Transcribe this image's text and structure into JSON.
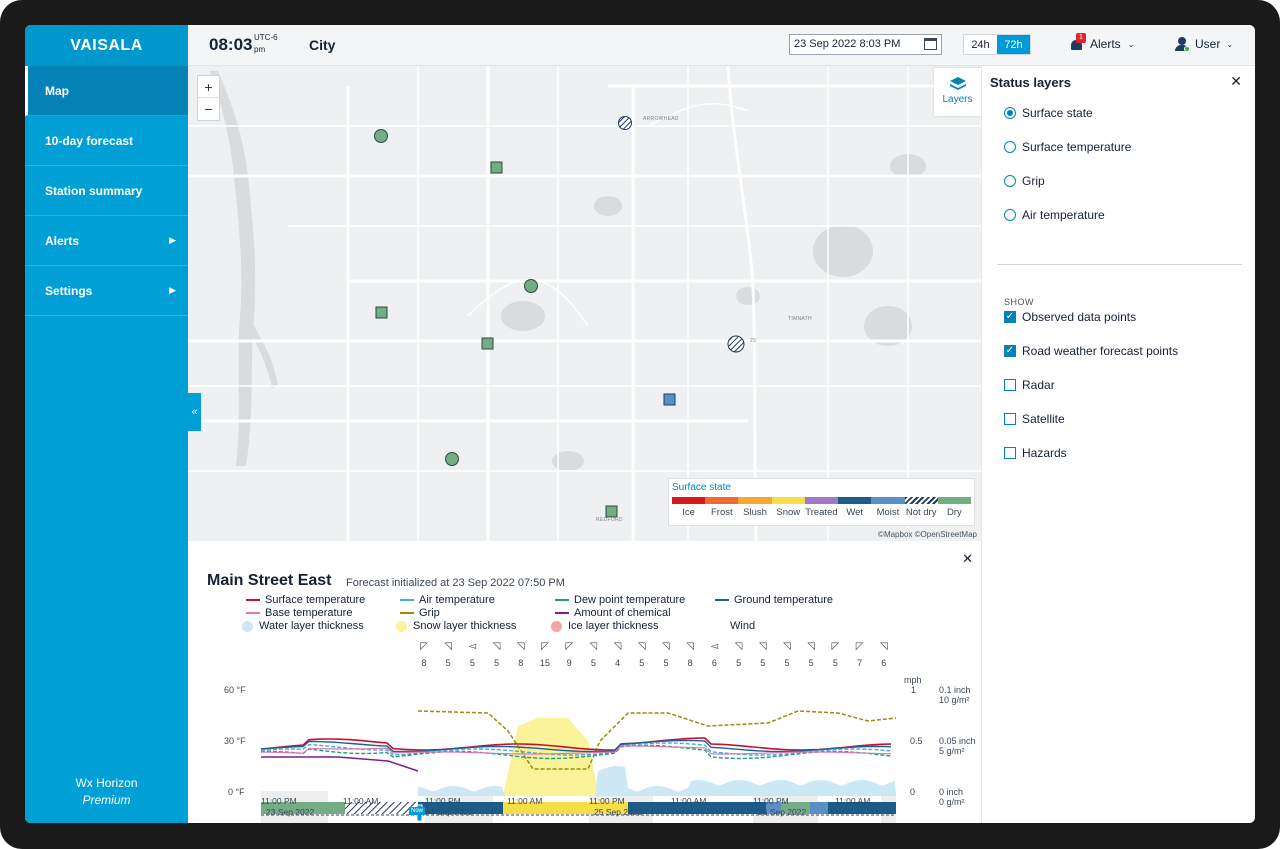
{
  "app": {
    "logo": "VAISALA",
    "brand": "Wx Horizon",
    "edition": "Premium"
  },
  "sidebar": {
    "items": [
      {
        "label": "Map",
        "active": true,
        "has_submenu": false
      },
      {
        "label": "10-day forecast",
        "active": false,
        "has_submenu": false
      },
      {
        "label": "Station summary",
        "active": false,
        "has_submenu": false
      },
      {
        "label": "Alerts",
        "active": false,
        "has_submenu": true
      },
      {
        "label": "Settings",
        "active": false,
        "has_submenu": true
      }
    ],
    "collapse_icon": "double-chevron-left-icon"
  },
  "header": {
    "time": "08:03",
    "utc_offset": "UTC-6",
    "meridiem": "pm",
    "city": "City",
    "date_value": "23 Sep 2022 8:03 PM",
    "range_options": [
      "24h",
      "72h"
    ],
    "range_selected": "72h",
    "alerts_label": "Alerts",
    "alerts_count": "1",
    "user_label": "User"
  },
  "map": {
    "zoom_in": "+",
    "zoom_out": "−",
    "layers_label": "Layers",
    "attribution": "©Mapbox ©OpenStreetMap",
    "place_labels": [
      "ARROWHEAD",
      "TIMNATH",
      "REDFORD"
    ],
    "road_label": "25",
    "legend": {
      "title": "Surface state",
      "items": [
        {
          "label": "Ice",
          "color": "#d7191c"
        },
        {
          "label": "Frost",
          "color": "#f06b2f"
        },
        {
          "label": "Slush",
          "color": "#f8a832"
        },
        {
          "label": "Snow",
          "color": "#f6df46"
        },
        {
          "label": "Treated",
          "color": "#a278c8"
        },
        {
          "label": "Wet",
          "color": "#1b5c89"
        },
        {
          "label": "Moist",
          "color": "#5a8fc6"
        },
        {
          "label": "Not dry",
          "color": "hatched"
        },
        {
          "label": "Dry",
          "color": "#74ac85"
        }
      ]
    }
  },
  "status_layers": {
    "title": "Status layers",
    "options": [
      {
        "label": "Surface state",
        "selected": true
      },
      {
        "label": "Surface temperature",
        "selected": false
      },
      {
        "label": "Grip",
        "selected": false
      },
      {
        "label": "Air temperature",
        "selected": false
      }
    ],
    "show_label": "SHOW",
    "show_items": [
      {
        "label": "Observed data points",
        "checked": true
      },
      {
        "label": "Road weather forecast points",
        "checked": true
      },
      {
        "label": "Radar",
        "checked": false
      },
      {
        "label": "Satellite",
        "checked": false
      },
      {
        "label": "Hazards",
        "checked": false
      }
    ]
  },
  "forecast": {
    "station": "Main Street East",
    "initialized": "Forecast initialized at 23 Sep 2022 07:50 PM",
    "legend": [
      {
        "label": "Surface temperature",
        "color": "#c8102e",
        "kind": "line"
      },
      {
        "label": "Air temperature",
        "color": "#4aa8e0",
        "kind": "line"
      },
      {
        "label": "Dew point temperature",
        "color": "#1aa07a",
        "kind": "line"
      },
      {
        "label": "Ground temperature",
        "color": "#1f5f98",
        "kind": "line"
      },
      {
        "label": "Base temperature",
        "color": "#d97ab1",
        "kind": "line"
      },
      {
        "label": "Grip",
        "color": "#9c8a10",
        "kind": "line"
      },
      {
        "label": "Amount of chemical",
        "color": "#7a1f8c",
        "kind": "line"
      },
      {
        "label": "Water layer thickness",
        "color": "#cce8f5",
        "kind": "dot"
      },
      {
        "label": "Snow layer thickness",
        "color": "#fbf39a",
        "kind": "dot"
      },
      {
        "label": "Ice layer thickness",
        "color": "#f4a3a8",
        "kind": "dot"
      },
      {
        "label": "Wind",
        "color": "",
        "kind": "none"
      }
    ],
    "y_left": [
      "60 °F",
      "30 °F",
      "0 °F"
    ],
    "y_wind_unit": "mph",
    "y_mid": [
      "1",
      "0.5",
      "0"
    ],
    "y_right": [
      [
        "0.1 inch",
        "10 g/m²"
      ],
      [
        "0.05 inch",
        "5 g/m²"
      ],
      [
        "0 inch",
        "0 g/m²"
      ]
    ],
    "wind_speeds": [
      "8",
      "5",
      "5",
      "5",
      "8",
      "15",
      "9",
      "5",
      "4",
      "5",
      "5",
      "8",
      "6",
      "5",
      "5",
      "5",
      "5",
      "5",
      "7",
      "6"
    ],
    "time_labels": [
      {
        "time": "11:00 PM",
        "date": "23 Sep 2022"
      },
      {
        "time": "11:00 AM",
        "date": ""
      },
      {
        "time": "11:00 PM",
        "date": "24 Sep 2022"
      },
      {
        "time": "11:00 AM",
        "date": ""
      },
      {
        "time": "11:00 PM",
        "date": "25 Sep 2022"
      },
      {
        "time": "11:00 AM",
        "date": ""
      },
      {
        "time": "11:00 PM",
        "date": "26 Sep 2022"
      },
      {
        "time": "11:00 AM",
        "date": ""
      }
    ],
    "now_label": "Now"
  }
}
